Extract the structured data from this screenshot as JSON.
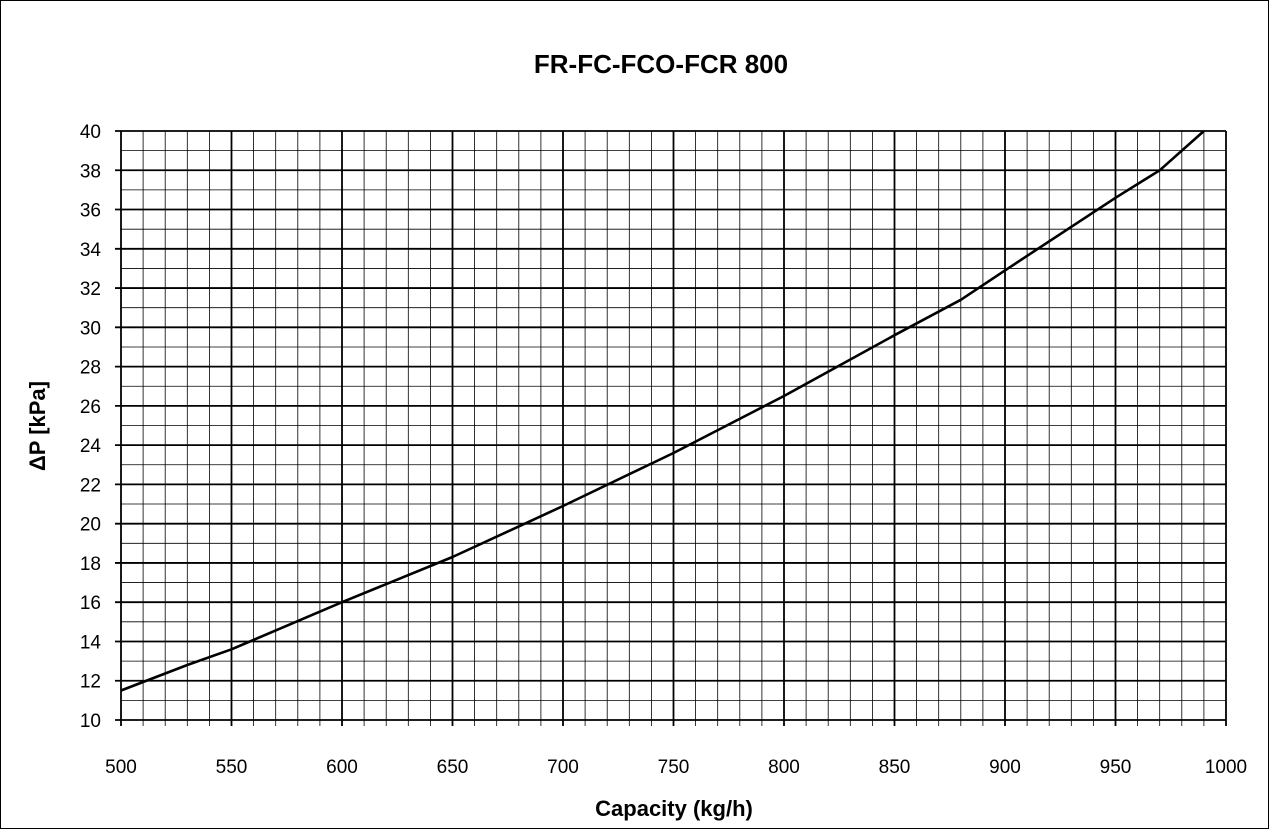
{
  "chart_data": {
    "type": "line",
    "title": "FR-FC-FCO-FCR 800",
    "xlabel": "Capacity (kg/h)",
    "ylabel": "ΔP [kPa]",
    "xlim": [
      500,
      1000
    ],
    "ylim": [
      10,
      40
    ],
    "x_ticks": [
      500,
      550,
      600,
      650,
      700,
      750,
      800,
      850,
      900,
      950,
      1000
    ],
    "y_ticks": [
      10,
      12,
      14,
      16,
      18,
      20,
      22,
      24,
      26,
      28,
      30,
      32,
      34,
      36,
      38,
      40
    ],
    "grid": true,
    "legend": "none",
    "series": [
      {
        "x": [
          500,
          530,
          550,
          600,
          650,
          700,
          750,
          800,
          850,
          880,
          900,
          950,
          970,
          990
        ],
        "y": [
          11.5,
          12.8,
          13.6,
          16.0,
          18.3,
          20.9,
          23.6,
          26.5,
          29.6,
          31.4,
          32.9,
          36.6,
          38.0,
          40.0
        ]
      }
    ],
    "colors": {
      "line": "#000000",
      "grid_major": "#000000",
      "grid_minor": "#000000",
      "background": "#ffffff"
    }
  }
}
